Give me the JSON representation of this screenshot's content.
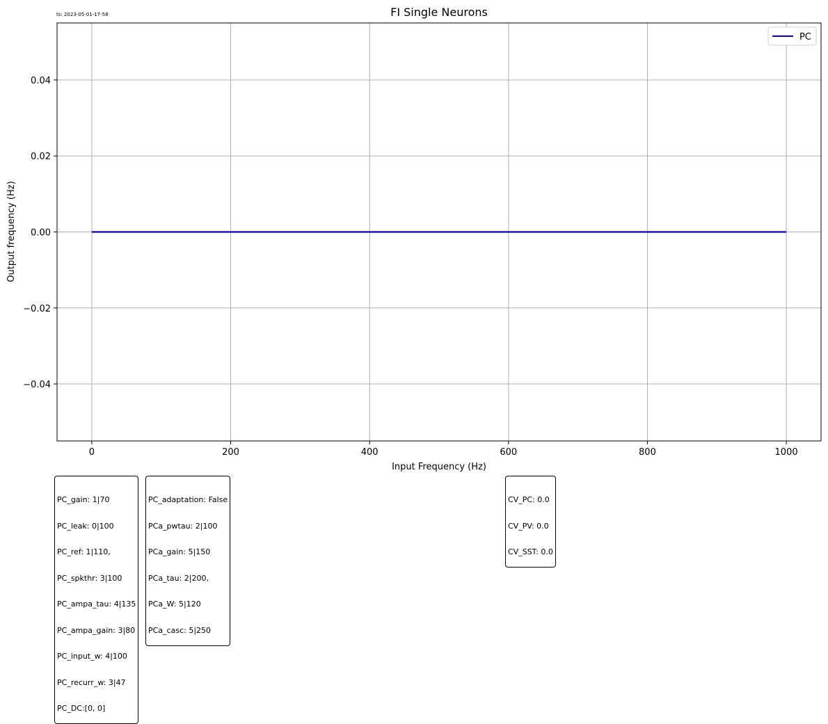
{
  "timestamp": "ts: 2023-05-01-17-58",
  "chart_data": {
    "type": "line",
    "title": "FI Single Neurons",
    "xlabel": "Input Frequency (Hz)",
    "ylabel": "Output frequency (Hz)",
    "xlim": [
      -50,
      1050
    ],
    "ylim": [
      -0.055,
      0.055
    ],
    "xticks": [
      0,
      200,
      400,
      600,
      800,
      1000
    ],
    "xtick_labels": [
      "0",
      "200",
      "400",
      "600",
      "800",
      "1000"
    ],
    "yticks": [
      0.04,
      0.02,
      0.0,
      -0.02,
      -0.04
    ],
    "ytick_labels": [
      "0.04",
      "0.02",
      "0.00",
      "−0.02",
      "−0.04"
    ],
    "grid": true,
    "legend_position": "top-right",
    "series": [
      {
        "name": "PC",
        "color": "#0000cc",
        "x": [
          0,
          100,
          200,
          300,
          400,
          500,
          600,
          700,
          800,
          900,
          1000
        ],
        "y": [
          0,
          0,
          0,
          0,
          0,
          0,
          0,
          0,
          0,
          0,
          0
        ]
      }
    ]
  },
  "info_boxes": {
    "pc_params": [
      "PC_gain: 1|70",
      "PC_leak: 0|100",
      "PC_ref: 1|110,",
      "PC_spkthr: 3|100",
      "PC_ampa_tau: 4|135",
      "PC_ampa_gain: 3|80",
      "PC_input_w: 4|100",
      "PC_recurr_w: 3|47",
      "PC_DC:[0, 0]"
    ],
    "pca_params": [
      "PC_adaptation: False",
      "PCa_pwtau: 2|100",
      "PCa_gain: 5|150",
      "PCa_tau: 2|200,",
      "PCa_W: 5|120",
      "PCa_casc: 5|250"
    ],
    "cv_values": [
      "CV_PC: 0.0",
      "CV_PV: 0.0",
      "CV_SST: 0.0"
    ]
  }
}
